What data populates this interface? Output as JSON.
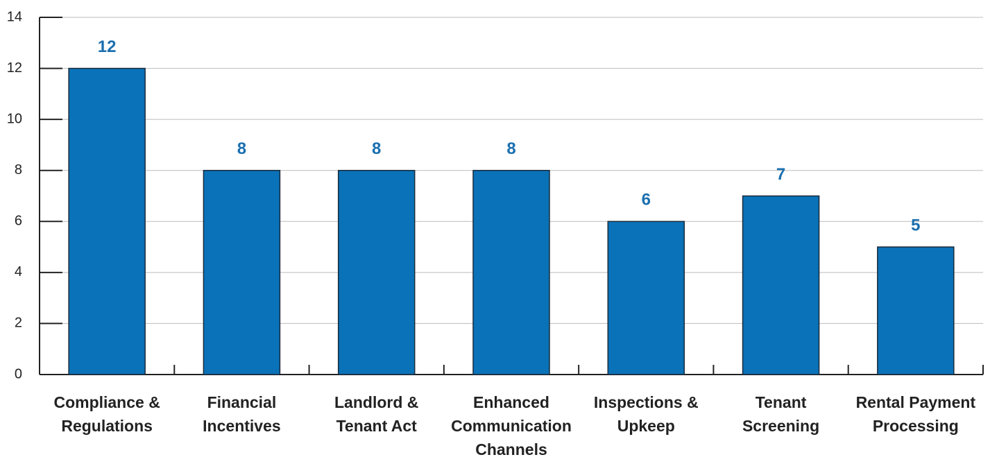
{
  "chart_data": {
    "type": "bar",
    "categories": [
      "Compliance & Regulations",
      "Financial Incentives",
      "Landlord & Tenant Act",
      "Enhanced Communication Channels",
      "Inspections & Upkeep",
      "Tenant Screening",
      "Rental Payment Processing"
    ],
    "values": [
      12,
      8,
      8,
      8,
      6,
      7,
      5
    ],
    "color": "#0a72b8",
    "ylim": [
      0,
      14
    ],
    "yticks": [
      0,
      2,
      4,
      6,
      8,
      10,
      12,
      14
    ],
    "grid": true
  }
}
